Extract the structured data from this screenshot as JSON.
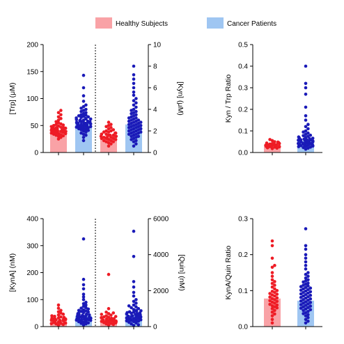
{
  "legend": [
    {
      "label": "Healthy Subjects",
      "color": "#f9a2a6"
    },
    {
      "label": "Cancer Patients",
      "color": "#9fc6f2"
    }
  ],
  "colors": {
    "healthy_bar": "#f9a2a6",
    "cancer_bar": "#9fc6f2",
    "healthy_dot": "#ee1c25",
    "cancer_dot": "#1a1ab8"
  },
  "chart_data": [
    {
      "id": "trp-kyn",
      "type": "bar",
      "categories": [
        "Healthy Subjects",
        "Cancer Patients"
      ],
      "left_axis": {
        "label": "[Trp] (μM)",
        "ylim": [
          0,
          200
        ],
        "ticks": [
          "0",
          "50",
          "100",
          "150",
          "200"
        ]
      },
      "right_axis": {
        "label": "[Kyn] (μM)",
        "ylim": [
          0,
          10
        ],
        "ticks": [
          "0",
          "2",
          "4",
          "6",
          "8",
          "10"
        ]
      },
      "series": [
        {
          "name": "Trp",
          "axis": "left",
          "values": [
            42,
            55
          ],
          "points": [
            [
              25,
              28,
              30,
              31,
              32,
              33,
              34,
              35,
              35,
              36,
              37,
              37,
              38,
              38,
              39,
              39,
              40,
              40,
              41,
              41,
              42,
              42,
              43,
              43,
              44,
              44,
              45,
              45,
              46,
              46,
              47,
              48,
              49,
              50,
              51,
              52,
              53,
              55,
              57,
              60,
              63,
              66,
              70,
              74,
              78
            ],
            [
              22,
              28,
              32,
              34,
              36,
              38,
              40,
              41,
              42,
              43,
              44,
              45,
              46,
              47,
              47,
              48,
              48,
              49,
              49,
              50,
              50,
              51,
              51,
              52,
              52,
              53,
              53,
              54,
              54,
              55,
              55,
              56,
              56,
              57,
              57,
              58,
              58,
              59,
              60,
              60,
              61,
              62,
              62,
              63,
              64,
              65,
              66,
              67,
              68,
              69,
              70,
              72,
              74,
              76,
              78,
              80,
              82,
              85,
              88,
              95,
              105,
              120,
              143
            ]
          ]
        },
        {
          "name": "Kyn",
          "axis": "right",
          "values": [
            1.5,
            2.6
          ],
          "points": [
            [
              0.6,
              0.8,
              0.9,
              1.0,
              1.0,
              1.1,
              1.1,
              1.2,
              1.2,
              1.3,
              1.3,
              1.3,
              1.4,
              1.4,
              1.4,
              1.5,
              1.5,
              1.5,
              1.6,
              1.6,
              1.6,
              1.7,
              1.7,
              1.7,
              1.8,
              1.8,
              1.9,
              1.9,
              2.0,
              2.0,
              2.1,
              2.2,
              2.3,
              2.4,
              2.5,
              2.6,
              2.8
            ],
            [
              0.6,
              0.8,
              1.0,
              1.1,
              1.2,
              1.3,
              1.4,
              1.5,
              1.5,
              1.6,
              1.7,
              1.7,
              1.8,
              1.8,
              1.9,
              1.9,
              2.0,
              2.0,
              2.1,
              2.1,
              2.2,
              2.2,
              2.3,
              2.3,
              2.4,
              2.4,
              2.5,
              2.5,
              2.6,
              2.6,
              2.7,
              2.7,
              2.8,
              2.8,
              2.9,
              2.9,
              3.0,
              3.0,
              3.1,
              3.2,
              3.2,
              3.3,
              3.4,
              3.5,
              3.6,
              3.7,
              3.8,
              3.9,
              4.0,
              4.2,
              4.4,
              4.6,
              4.8,
              5.0,
              5.3,
              5.6,
              6.0,
              6.4,
              6.8,
              7.2,
              8.0
            ]
          ]
        }
      ]
    },
    {
      "id": "kyn-trp-ratio",
      "type": "bar",
      "categories": [
        "Healthy Subjects",
        "Cancer Patients"
      ],
      "left_axis": {
        "label": "Kyn / Trp Ratio",
        "ylim": [
          0,
          0.5
        ],
        "ticks": [
          "0.0",
          "0.1",
          "0.2",
          "0.3",
          "0.4",
          "0.5"
        ]
      },
      "series": [
        {
          "name": "Kyn/Trp",
          "axis": "left",
          "values": [
            0.033,
            0.055
          ],
          "points": [
            [
              0.018,
              0.02,
              0.022,
              0.024,
              0.025,
              0.026,
              0.027,
              0.028,
              0.028,
              0.029,
              0.029,
              0.03,
              0.03,
              0.031,
              0.031,
              0.032,
              0.032,
              0.033,
              0.033,
              0.034,
              0.034,
              0.035,
              0.035,
              0.036,
              0.036,
              0.037,
              0.038,
              0.039,
              0.04,
              0.041,
              0.042,
              0.044,
              0.046,
              0.048,
              0.05,
              0.055,
              0.06
            ],
            [
              0.015,
              0.02,
              0.023,
              0.025,
              0.027,
              0.029,
              0.03,
              0.031,
              0.032,
              0.033,
              0.034,
              0.035,
              0.036,
              0.037,
              0.038,
              0.039,
              0.04,
              0.041,
              0.042,
              0.043,
              0.044,
              0.045,
              0.046,
              0.047,
              0.048,
              0.049,
              0.05,
              0.051,
              0.052,
              0.053,
              0.054,
              0.055,
              0.056,
              0.057,
              0.058,
              0.059,
              0.06,
              0.062,
              0.064,
              0.066,
              0.068,
              0.07,
              0.072,
              0.075,
              0.078,
              0.08,
              0.085,
              0.09,
              0.095,
              0.1,
              0.11,
              0.12,
              0.13,
              0.15,
              0.17,
              0.21,
              0.27,
              0.3,
              0.32,
              0.4
            ]
          ]
        }
      ]
    },
    {
      "id": "kyna-quin",
      "type": "bar",
      "categories": [
        "Healthy Subjects",
        "Cancer Patients"
      ],
      "left_axis": {
        "label": "[KynA] (nM)",
        "ylim": [
          0,
          400
        ],
        "ticks": [
          "0",
          "100",
          "200",
          "300",
          "400"
        ]
      },
      "right_axis": {
        "label": "[Quin] (nM)",
        "ylim": [
          0,
          6000
        ],
        "ticks": [
          "0",
          "2000",
          "4000",
          "6000"
        ]
      },
      "series": [
        {
          "name": "KynA",
          "axis": "left",
          "values": [
            25,
            40
          ],
          "points": [
            [
              5,
              8,
              10,
              11,
              12,
              13,
              14,
              15,
              16,
              16,
              17,
              18,
              19,
              20,
              20,
              21,
              22,
              23,
              24,
              25,
              26,
              27,
              28,
              29,
              30,
              31,
              32,
              34,
              36,
              38,
              40,
              43,
              46,
              50,
              55,
              60,
              68,
              80
            ],
            [
              6,
              10,
              12,
              14,
              16,
              18,
              20,
              22,
              23,
              24,
              25,
              26,
              27,
              28,
              29,
              30,
              31,
              32,
              33,
              34,
              35,
              36,
              37,
              38,
              39,
              40,
              41,
              42,
              43,
              44,
              45,
              46,
              48,
              50,
              52,
              54,
              56,
              58,
              60,
              62,
              65,
              68,
              70,
              75,
              80,
              85,
              90,
              100,
              110,
              120,
              140,
              155,
              175,
              325
            ]
          ]
        },
        {
          "name": "Quin",
          "axis": "right",
          "values": [
            400,
            650
          ],
          "points": [
            [
              80,
              120,
              150,
              180,
              200,
              220,
              240,
              260,
              280,
              290,
              300,
              310,
              320,
              330,
              340,
              350,
              360,
              380,
              400,
              420,
              440,
              460,
              480,
              500,
              520,
              540,
              560,
              600,
              640,
              680,
              720,
              760,
              800,
              1000,
              2900
            ],
            [
              60,
              100,
              150,
              200,
              240,
              280,
              300,
              320,
              340,
              360,
              380,
              400,
              420,
              440,
              460,
              480,
              500,
              520,
              540,
              560,
              580,
              600,
              620,
              640,
              660,
              680,
              700,
              720,
              740,
              760,
              780,
              800,
              820,
              850,
              880,
              900,
              950,
              1000,
              1050,
              1100,
              1150,
              1200,
              1300,
              1400,
              1500,
              1700,
              1900,
              2200,
              2500,
              3900,
              5300
            ]
          ]
        }
      ]
    },
    {
      "id": "kyna-quin-ratio",
      "type": "bar",
      "categories": [
        "Healthy Subjects",
        "Cancer Patients"
      ],
      "left_axis": {
        "label": "KynA/Quin Ratio",
        "ylim": [
          0,
          0.3
        ],
        "ticks": [
          "0.0",
          "0.1",
          "0.2",
          "0.3"
        ]
      },
      "series": [
        {
          "name": "KynA/Quin",
          "axis": "left",
          "values": [
            0.078,
            0.072
          ],
          "points": [
            [
              0.01,
              0.02,
              0.03,
              0.035,
              0.04,
              0.045,
              0.05,
              0.052,
              0.055,
              0.058,
              0.06,
              0.062,
              0.065,
              0.068,
              0.07,
              0.072,
              0.075,
              0.078,
              0.08,
              0.082,
              0.085,
              0.088,
              0.09,
              0.092,
              0.095,
              0.098,
              0.1,
              0.105,
              0.11,
              0.115,
              0.12,
              0.125,
              0.13,
              0.14,
              0.15,
              0.165,
              0.17,
              0.19,
              0.225,
              0.238
            ],
            [
              0.01,
              0.015,
              0.02,
              0.025,
              0.03,
              0.033,
              0.036,
              0.039,
              0.042,
              0.045,
              0.047,
              0.049,
              0.051,
              0.053,
              0.055,
              0.057,
              0.059,
              0.061,
              0.063,
              0.065,
              0.067,
              0.069,
              0.071,
              0.073,
              0.075,
              0.077,
              0.079,
              0.081,
              0.083,
              0.085,
              0.087,
              0.089,
              0.091,
              0.093,
              0.095,
              0.097,
              0.099,
              0.101,
              0.103,
              0.105,
              0.107,
              0.109,
              0.111,
              0.113,
              0.115,
              0.118,
              0.121,
              0.124,
              0.127,
              0.13,
              0.135,
              0.14,
              0.145,
              0.15,
              0.16,
              0.17,
              0.18,
              0.19,
              0.2,
              0.215,
              0.225,
              0.272
            ]
          ]
        }
      ]
    }
  ]
}
